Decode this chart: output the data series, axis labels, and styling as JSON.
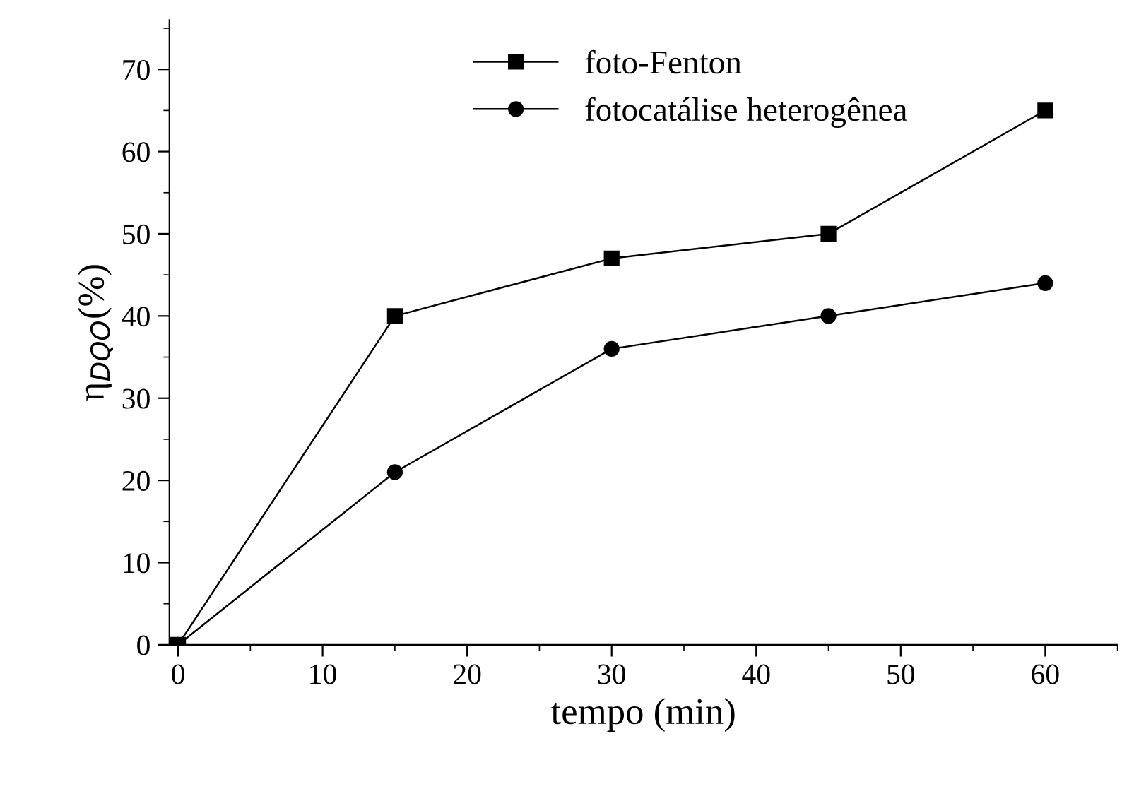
{
  "chart_data": {
    "type": "line",
    "xlabel": "tempo (min)",
    "ylabel": "η$_{DQO}$(%)",
    "x": [
      0,
      15,
      30,
      45,
      60
    ],
    "series": [
      {
        "name": "foto-Fenton",
        "color": "#000000",
        "marker": "square",
        "values": [
          0,
          40,
          47,
          50,
          65
        ]
      },
      {
        "name": "fotocatálise heterogênea",
        "color": "#000000",
        "marker": "circle",
        "values": [
          0,
          21,
          36,
          40,
          44
        ]
      }
    ],
    "xlim": [
      -0.6,
      65
    ],
    "ylim": [
      0,
      76
    ],
    "xticks": [
      0,
      10,
      20,
      30,
      40,
      50,
      60
    ],
    "yticks": [
      0,
      10,
      20,
      30,
      40,
      50,
      60,
      70
    ],
    "grid": false,
    "legend": "top",
    "line_style": "solid"
  }
}
